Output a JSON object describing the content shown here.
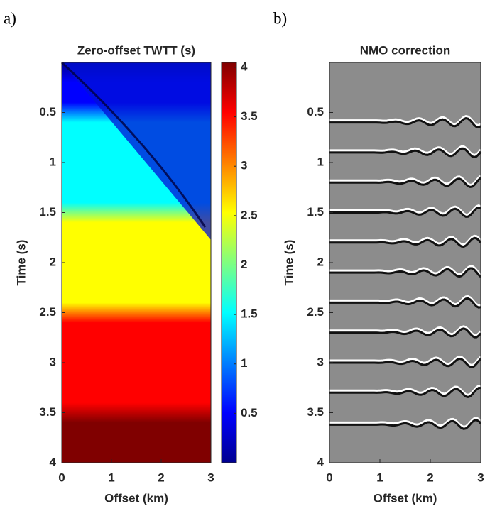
{
  "chart_data": [
    {
      "type": "heatmap",
      "label": "a)",
      "title": "Zero-offset TWTT (s)",
      "xlabel": "Offset (km)",
      "ylabel": "Time (s)",
      "xlim": [
        0,
        3
      ],
      "ylim": [
        0,
        4
      ],
      "xticks": [
        0,
        1,
        2,
        3
      ],
      "yticks": [
        0.5,
        1,
        1.5,
        2,
        2.5,
        3,
        3.5,
        4
      ],
      "colormap": "jet",
      "clim": [
        0,
        4.05
      ],
      "cticks": [
        0.5,
        1,
        1.5,
        2,
        2.5,
        3,
        3.5,
        4
      ]
    },
    {
      "type": "seismic",
      "label": "b)",
      "title": "NMO correction",
      "xlabel": "Offset (km)",
      "ylabel": "Time (s)",
      "xlim": [
        0,
        3
      ],
      "ylim": [
        0,
        4
      ],
      "xticks": [
        0,
        1,
        2,
        3
      ],
      "yticks": [
        0.5,
        1,
        1.5,
        2,
        2.5,
        3,
        3.5,
        4
      ],
      "events": [
        0.6,
        0.9,
        1.2,
        1.5,
        1.8,
        2.1,
        2.4,
        2.7,
        3.0,
        3.3,
        3.62
      ]
    }
  ]
}
